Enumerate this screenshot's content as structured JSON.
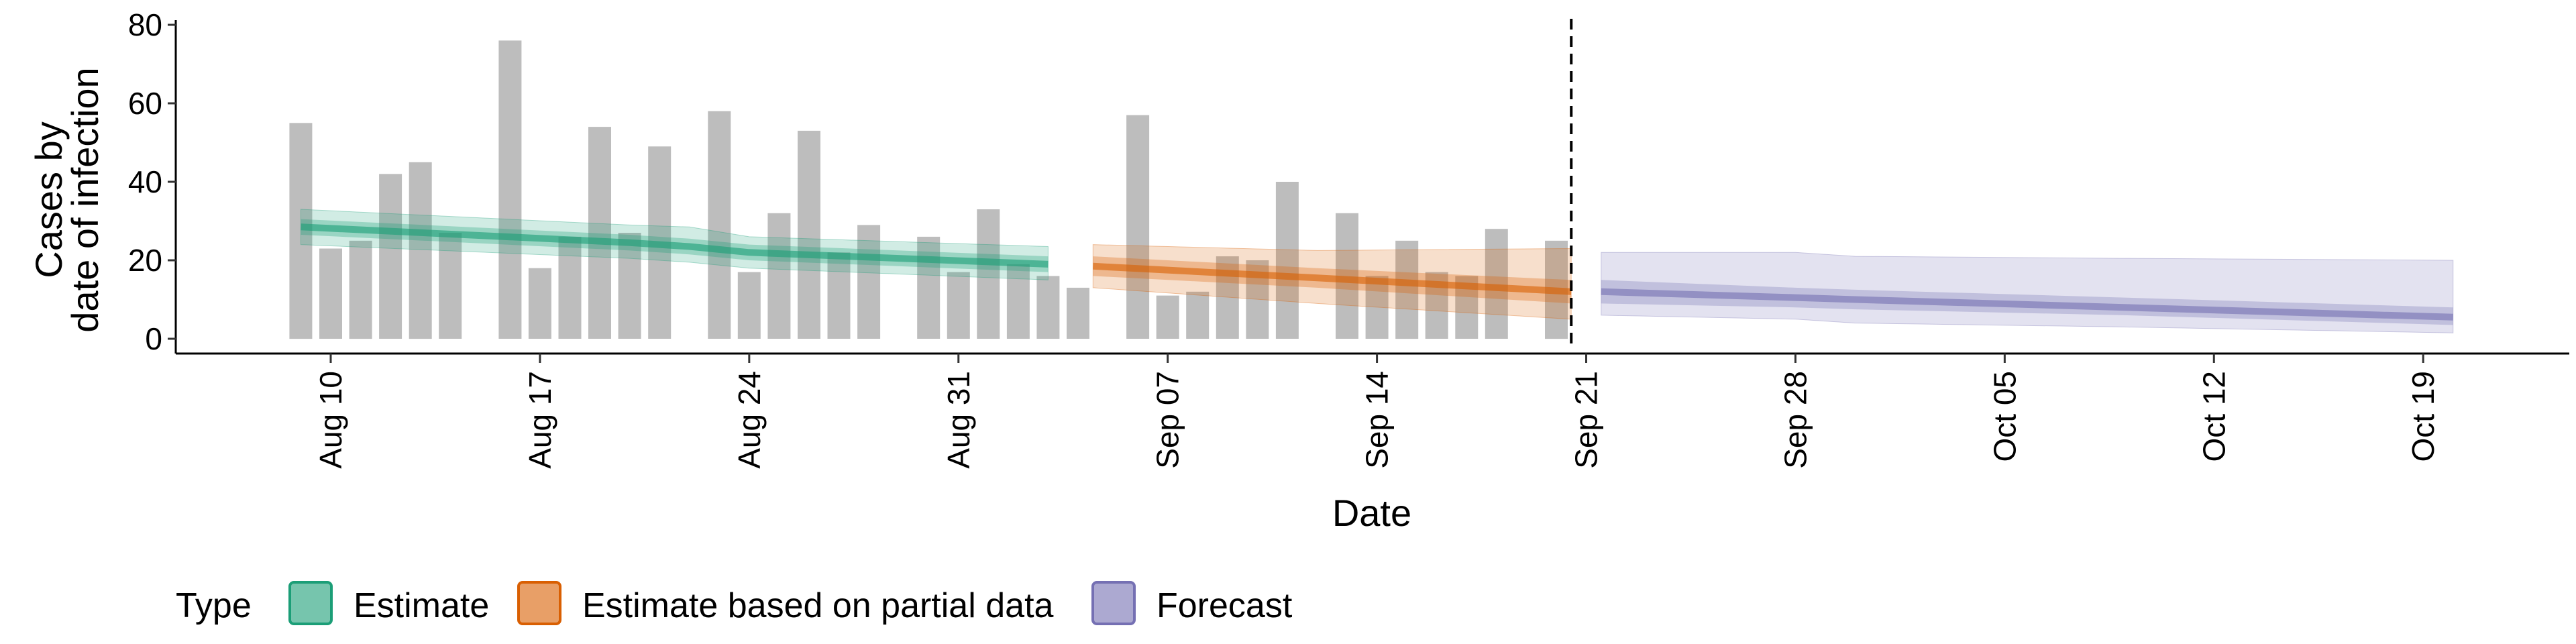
{
  "chart_data": {
    "type": "bar",
    "title": "",
    "xlabel": "Date",
    "ylabel_line1": "Cases by",
    "ylabel_line2": "date of infection",
    "ylim": [
      0,
      80
    ],
    "y_ticks": [
      0,
      20,
      40,
      60,
      80
    ],
    "x_ticks": [
      {
        "day": 10,
        "label": "Aug 10"
      },
      {
        "day": 17,
        "label": "Aug 17"
      },
      {
        "day": 24,
        "label": "Aug 24"
      },
      {
        "day": 31,
        "label": "Aug 31"
      },
      {
        "day": 38,
        "label": "Sep 07"
      },
      {
        "day": 45,
        "label": "Sep 14"
      },
      {
        "day": 52,
        "label": "Sep 21"
      },
      {
        "day": 59,
        "label": "Sep 28"
      },
      {
        "day": 66,
        "label": "Oct 05"
      },
      {
        "day": 73,
        "label": "Oct 12"
      },
      {
        "day": 80,
        "label": "Oct 19"
      }
    ],
    "x_note": "x positions are days counted from Aug 1",
    "xlim_days": [
      4.5,
      86
    ],
    "forecast_start_day": 51.5,
    "bars": [
      {
        "date": "Aug 09",
        "day": 9,
        "value": 55
      },
      {
        "date": "Aug 10",
        "day": 10,
        "value": 23
      },
      {
        "date": "Aug 11",
        "day": 11,
        "value": 25
      },
      {
        "date": "Aug 12",
        "day": 12,
        "value": 42
      },
      {
        "date": "Aug 13",
        "day": 13,
        "value": 45
      },
      {
        "date": "Aug 14",
        "day": 14,
        "value": 27
      },
      {
        "date": "Aug 16",
        "day": 16,
        "value": 76
      },
      {
        "date": "Aug 17",
        "day": 17,
        "value": 18
      },
      {
        "date": "Aug 18",
        "day": 18,
        "value": 26
      },
      {
        "date": "Aug 19",
        "day": 19,
        "value": 54
      },
      {
        "date": "Aug 20",
        "day": 20,
        "value": 27
      },
      {
        "date": "Aug 21",
        "day": 21,
        "value": 49
      },
      {
        "date": "Aug 23",
        "day": 23,
        "value": 58
      },
      {
        "date": "Aug 24",
        "day": 24,
        "value": 17
      },
      {
        "date": "Aug 25",
        "day": 25,
        "value": 32
      },
      {
        "date": "Aug 26",
        "day": 26,
        "value": 53
      },
      {
        "date": "Aug 27",
        "day": 27,
        "value": 22
      },
      {
        "date": "Aug 28",
        "day": 28,
        "value": 29
      },
      {
        "date": "Aug 30",
        "day": 30,
        "value": 26
      },
      {
        "date": "Aug 31",
        "day": 31,
        "value": 17
      },
      {
        "date": "Sep 01",
        "day": 32,
        "value": 33
      },
      {
        "date": "Sep 02",
        "day": 33,
        "value": 19
      },
      {
        "date": "Sep 03",
        "day": 34,
        "value": 16
      },
      {
        "date": "Sep 04",
        "day": 35,
        "value": 13
      },
      {
        "date": "Sep 06",
        "day": 37,
        "value": 57
      },
      {
        "date": "Sep 07",
        "day": 38,
        "value": 11
      },
      {
        "date": "Sep 08",
        "day": 39,
        "value": 12
      },
      {
        "date": "Sep 09",
        "day": 40,
        "value": 21
      },
      {
        "date": "Sep 10",
        "day": 41,
        "value": 20
      },
      {
        "date": "Sep 11",
        "day": 42,
        "value": 40
      },
      {
        "date": "Sep 13",
        "day": 44,
        "value": 32
      },
      {
        "date": "Sep 14",
        "day": 45,
        "value": 16
      },
      {
        "date": "Sep 15",
        "day": 46,
        "value": 25
      },
      {
        "date": "Sep 16",
        "day": 47,
        "value": 17
      },
      {
        "date": "Sep 17",
        "day": 48,
        "value": 16
      },
      {
        "date": "Sep 18",
        "day": 49,
        "value": 28
      },
      {
        "date": "Sep 20",
        "day": 51,
        "value": 25
      }
    ],
    "series": [
      {
        "name": "Estimate",
        "color": "#1b9e77",
        "points": [
          {
            "day": 9,
            "median": 28.5,
            "inner": [
              26.5,
              30.5
            ],
            "outer": [
              24,
              33
            ]
          },
          {
            "day": 20,
            "median": 24.5,
            "inner": [
              22.5,
              26.5
            ],
            "outer": [
              20.5,
              29
            ]
          },
          {
            "day": 22,
            "median": 23.5,
            "inner": [
              21.5,
              25.5
            ],
            "outer": [
              19.5,
              28.5
            ]
          },
          {
            "day": 24,
            "median": 22,
            "inner": [
              20,
              24
            ],
            "outer": [
              18,
              26
            ]
          },
          {
            "day": 34,
            "median": 19,
            "inner": [
              17,
              21
            ],
            "outer": [
              15,
              23.5
            ]
          }
        ]
      },
      {
        "name": "Estimate based on partial data",
        "color": "#d95f02",
        "points": [
          {
            "day": 35.5,
            "median": 18.5,
            "inner": [
              16,
              21
            ],
            "outer": [
              13,
              24
            ]
          },
          {
            "day": 43,
            "median": 15.5,
            "inner": [
              13,
              18
            ],
            "outer": [
              9,
              22.5
            ]
          },
          {
            "day": 51.5,
            "median": 12,
            "inner": [
              9,
              15
            ],
            "outer": [
              5,
              23
            ]
          }
        ]
      },
      {
        "name": "Forecast",
        "color": "#7570b3",
        "points": [
          {
            "day": 52.5,
            "median": 12,
            "inner": [
              9,
              15
            ],
            "outer": [
              6,
              22
            ]
          },
          {
            "day": 59,
            "median": 10.5,
            "inner": [
              8,
              13
            ],
            "outer": [
              5,
              22
            ]
          },
          {
            "day": 61,
            "median": 10,
            "inner": [
              7.5,
              12.5
            ],
            "outer": [
              4,
              21
            ]
          },
          {
            "day": 70,
            "median": 8,
            "inner": [
              6,
              10.5
            ],
            "outer": [
              3,
              20.5
            ]
          },
          {
            "day": 81,
            "median": 5.5,
            "inner": [
              3.5,
              8
            ],
            "outer": [
              1.5,
              20
            ]
          }
        ]
      }
    ],
    "legend": {
      "title": "Type",
      "position": "bottom-left",
      "items": [
        "Estimate",
        "Estimate based on partial data",
        "Forecast"
      ]
    },
    "grid": false
  }
}
